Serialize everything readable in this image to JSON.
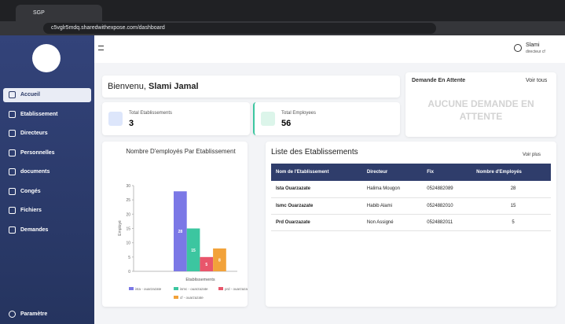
{
  "browser": {
    "tab_title": "SGP",
    "url": "c5vglr5mdq.sharedwithexpose.com/dashboard"
  },
  "sidebar": {
    "items": [
      "Accueil",
      "Etablissement",
      "Directeurs",
      "Personnelles",
      "documents",
      "Congés",
      "Fichiers",
      "Demandes"
    ],
    "settings": "Paramètre"
  },
  "header": {
    "user_name": "Slami",
    "user_role": "directeur cf"
  },
  "welcome": {
    "greeting": "Bienvenu,",
    "name": "Slami Jamal"
  },
  "stats": [
    {
      "label": "Total Etablissements",
      "value": 3
    },
    {
      "label": "Total Employees",
      "value": 56
    }
  ],
  "pending": {
    "title": "Demande En Attente",
    "link": "Voir tous",
    "empty": "AUCUNE DEMANDE EN ATTENTE"
  },
  "table": {
    "title": "Liste des Etablissements",
    "link": "Voir plus",
    "headers": [
      "Nom de l'Etablissement",
      "Directeur",
      "Fix",
      "Nombre d'Employés"
    ],
    "rows": [
      [
        "Ista Ouarzazate",
        "Halima Mougon",
        "0524882089",
        28
      ],
      [
        "Ismc Ouarzazate",
        "Habib Alami",
        "0524882010",
        15
      ],
      [
        "Prd Ouarzazate",
        "Non Assigné",
        "0524882011",
        5
      ]
    ]
  },
  "chart_data": {
    "type": "bar",
    "title": "Nombre D'employés Par Etablissement",
    "x_label": "Etablissements",
    "y_label": "Employé",
    "ylim": [
      0,
      30
    ],
    "yticks": [
      0,
      5,
      10,
      15,
      20,
      25,
      30
    ],
    "series": [
      {
        "name": "ista - ouarzazate",
        "color": "#7b78e6",
        "values": [
          28
        ]
      },
      {
        "name": "ismc - ouarzazate",
        "color": "#3cc6a0",
        "values": [
          15
        ]
      },
      {
        "name": "prd - ouarzazate",
        "color": "#e8566b",
        "values": [
          5
        ]
      },
      {
        "name": "cf - ouarzazate",
        "color": "#f2a23a",
        "values": [
          8
        ]
      }
    ]
  }
}
